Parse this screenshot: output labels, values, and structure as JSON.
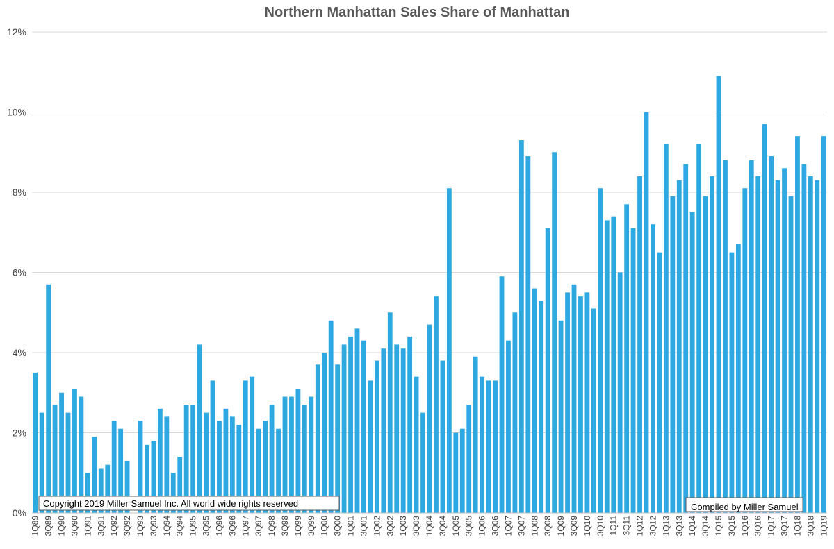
{
  "chart_data": {
    "type": "bar",
    "title": "Northern Manhattan Sales Share of Manhattan",
    "xlabel": "",
    "ylabel": "",
    "ylim": [
      0,
      12
    ],
    "yticks": [
      "0%",
      "2%",
      "4%",
      "6%",
      "8%",
      "10%",
      "12%"
    ],
    "unit": "%",
    "quarters": [
      "1Q89",
      "2Q89",
      "3Q89",
      "4Q89",
      "1Q90",
      "2Q90",
      "3Q90",
      "4Q90",
      "1Q91",
      "2Q91",
      "3Q91",
      "4Q91",
      "1Q92",
      "2Q92",
      "3Q92",
      "4Q92",
      "1Q93",
      "2Q93",
      "3Q93",
      "4Q93",
      "1Q94",
      "2Q94",
      "3Q94",
      "4Q94",
      "1Q95",
      "2Q95",
      "3Q95",
      "4Q95",
      "1Q96",
      "2Q96",
      "3Q96",
      "4Q96",
      "1Q97",
      "2Q97",
      "3Q97",
      "4Q97",
      "1Q98",
      "2Q98",
      "3Q98",
      "4Q98",
      "1Q99",
      "2Q99",
      "3Q99",
      "4Q99",
      "1Q00",
      "2Q00",
      "3Q00",
      "4Q00",
      "1Q01",
      "2Q01",
      "3Q01",
      "4Q01",
      "1Q02",
      "2Q02",
      "3Q02",
      "4Q02",
      "1Q03",
      "2Q03",
      "3Q03",
      "4Q03",
      "1Q04",
      "2Q04",
      "3Q04",
      "4Q04",
      "1Q05",
      "2Q05",
      "3Q05",
      "4Q05",
      "1Q06",
      "2Q06",
      "3Q06",
      "4Q06",
      "1Q07",
      "2Q07",
      "3Q07",
      "4Q07",
      "1Q08",
      "2Q08",
      "3Q08",
      "4Q08",
      "1Q09",
      "2Q09",
      "3Q09",
      "4Q09",
      "1Q10",
      "2Q10",
      "3Q10",
      "4Q10",
      "1Q11",
      "2Q11",
      "3Q11",
      "4Q11",
      "1Q12",
      "2Q12",
      "3Q12",
      "4Q12",
      "1Q13",
      "2Q13",
      "3Q13",
      "4Q13",
      "1Q14",
      "2Q14",
      "3Q14",
      "4Q14",
      "1Q15",
      "2Q15",
      "3Q15",
      "4Q15",
      "1Q16",
      "2Q16",
      "3Q16",
      "4Q16",
      "1Q17",
      "2Q17",
      "3Q17",
      "4Q17",
      "1Q18",
      "2Q18",
      "3Q18",
      "4Q18",
      "1Q19"
    ],
    "tick_labels": [
      "1Q89",
      "3Q89",
      "1Q90",
      "3Q90",
      "1Q91",
      "3Q91",
      "1Q92",
      "3Q92",
      "1Q93",
      "3Q93",
      "1Q94",
      "3Q94",
      "1Q95",
      "3Q95",
      "1Q96",
      "3Q96",
      "1Q97",
      "3Q97",
      "1Q98",
      "3Q98",
      "1Q99",
      "3Q99",
      "1Q00",
      "3Q00",
      "1Q01",
      "3Q01",
      "1Q02",
      "3Q02",
      "1Q03",
      "3Q03",
      "1Q04",
      "3Q04",
      "1Q05",
      "3Q05",
      "1Q06",
      "3Q06",
      "1Q07",
      "3Q07",
      "1Q08",
      "3Q08",
      "1Q09",
      "3Q09",
      "1Q10",
      "3Q10",
      "1Q11",
      "3Q11",
      "1Q12",
      "3Q12",
      "1Q13",
      "3Q13",
      "1Q14",
      "3Q14",
      "1Q15",
      "3Q15",
      "1Q16",
      "3Q16",
      "1Q17",
      "3Q17",
      "1Q18",
      "3Q18",
      "1Q19"
    ],
    "values": [
      3.5,
      2.5,
      5.7,
      2.7,
      3.0,
      2.5,
      3.1,
      2.9,
      1.0,
      1.9,
      1.1,
      1.2,
      2.3,
      2.1,
      1.3,
      0,
      2.3,
      1.7,
      1.8,
      2.6,
      2.4,
      1.0,
      1.4,
      2.7,
      2.7,
      4.2,
      2.5,
      3.3,
      2.3,
      2.6,
      2.4,
      2.2,
      3.3,
      3.4,
      2.1,
      2.3,
      2.7,
      2.1,
      2.9,
      2.9,
      3.1,
      2.7,
      2.9,
      3.7,
      4.0,
      4.8,
      3.7,
      4.2,
      4.4,
      4.6,
      4.3,
      3.3,
      3.8,
      4.1,
      5.0,
      4.2,
      4.1,
      4.4,
      3.4,
      2.5,
      4.7,
      5.4,
      3.8,
      8.1,
      2.0,
      2.1,
      2.7,
      3.9,
      3.4,
      3.3,
      3.3,
      5.9,
      4.3,
      5.0,
      9.3,
      8.9,
      5.6,
      5.3,
      7.1,
      9.0,
      4.8,
      5.5,
      5.7,
      5.4,
      5.5,
      5.1,
      8.1,
      7.3,
      7.4,
      6.0,
      7.7,
      7.1,
      8.4,
      10.0,
      7.2,
      6.5,
      9.2,
      7.9,
      8.3,
      8.7,
      7.5,
      9.2,
      7.9,
      8.4,
      10.9,
      8.8,
      6.5,
      6.7,
      8.1,
      8.8,
      8.4,
      9.7,
      8.9,
      8.3,
      8.6,
      7.9,
      9.4,
      8.7,
      8.4,
      8.3,
      9.4
    ],
    "grid": true,
    "legend": "none"
  },
  "notes": {
    "copyright": "Copyright 2019 Miller Samuel Inc. All world wide rights reserved",
    "compiled": "Compiled by Miller Samuel"
  }
}
